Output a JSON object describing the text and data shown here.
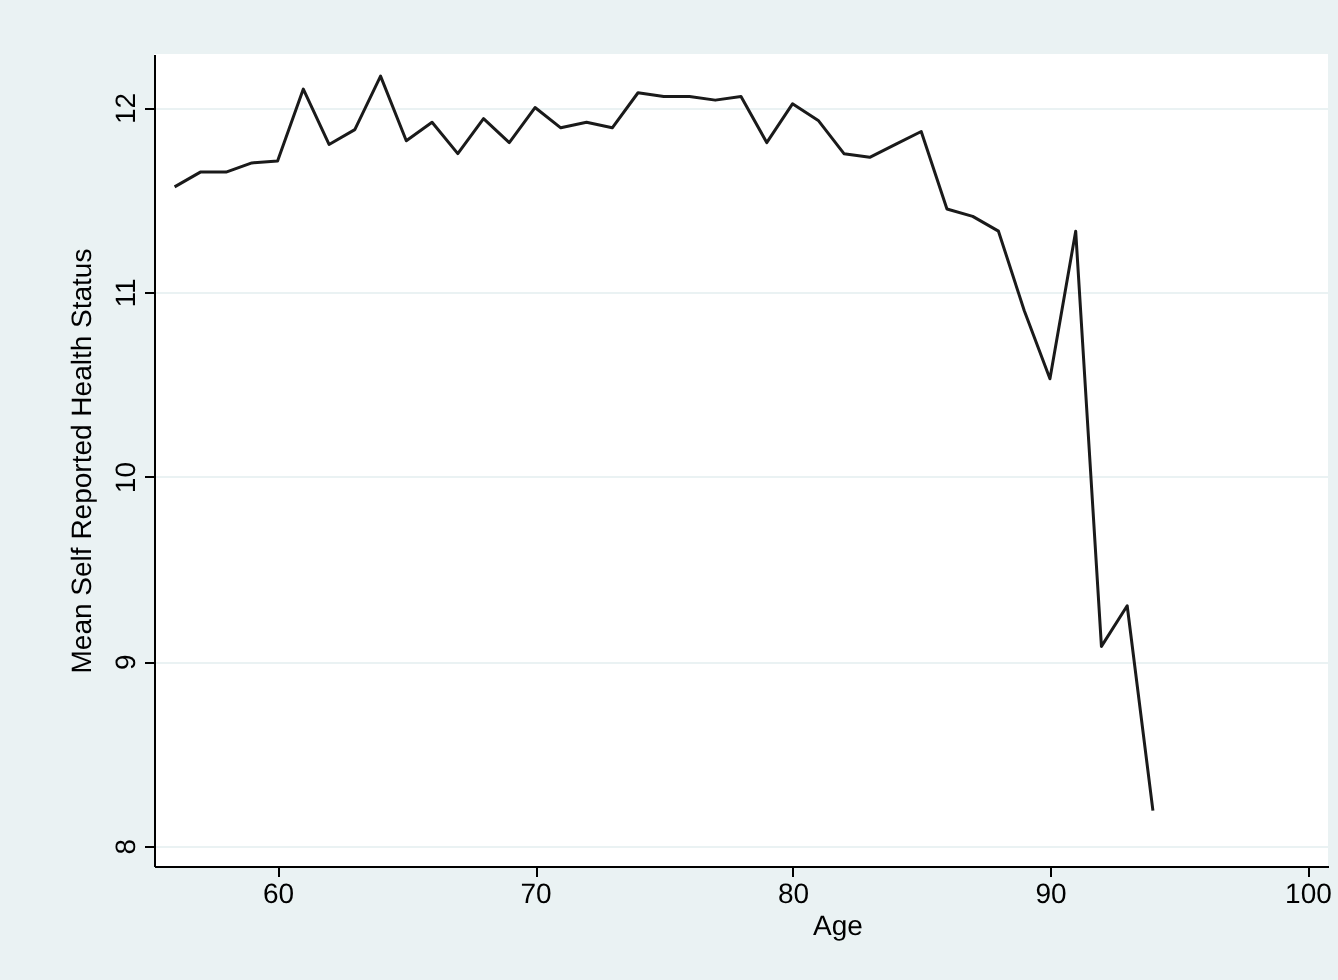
{
  "chart_data": {
    "type": "line",
    "xlabel": "Age",
    "ylabel": "Mean Self Reported Health Status",
    "x": [
      56,
      57,
      58,
      59,
      60,
      61,
      62,
      63,
      64,
      65,
      66,
      67,
      68,
      69,
      70,
      71,
      72,
      73,
      74,
      75,
      76,
      77,
      78,
      79,
      80,
      81,
      82,
      83,
      84,
      85,
      86,
      87,
      88,
      89,
      90,
      91,
      92,
      93,
      94
    ],
    "series": [
      {
        "color": "#1a1a1a",
        "values": [
          11.57,
          11.65,
          11.65,
          11.7,
          11.71,
          12.1,
          11.8,
          11.88,
          12.17,
          11.82,
          11.92,
          11.75,
          11.94,
          11.81,
          12.0,
          11.89,
          11.92,
          11.89,
          12.08,
          12.06,
          12.06,
          12.04,
          12.06,
          11.81,
          12.02,
          11.93,
          11.75,
          11.73,
          11.8,
          11.87,
          11.45,
          11.41,
          11.33,
          10.9,
          10.53,
          11.33,
          9.08,
          9.3,
          8.19
        ]
      }
    ],
    "xlim": [
      55.2,
      100.8
    ],
    "xticks": [
      60,
      70,
      80,
      90,
      100
    ],
    "ylim": [
      7.89,
      12.29
    ],
    "yticks": [
      8,
      9,
      10,
      11,
      12
    ],
    "grid": "y",
    "marker": "none",
    "line_style": "solid",
    "legend": false
  }
}
